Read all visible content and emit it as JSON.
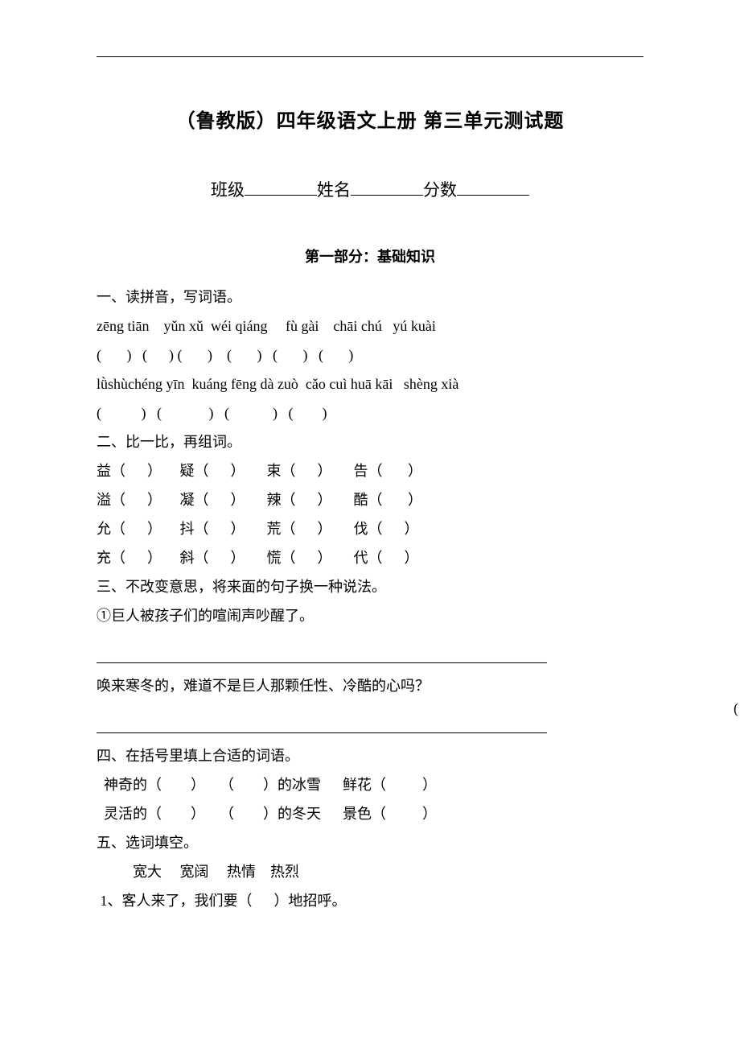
{
  "title": "（鲁教版）四年级语文上册 第三单元测试题",
  "fields": {
    "class_label": "班级",
    "name_label": "姓名",
    "score_label": "分数"
  },
  "part1_heading": "第一部分：基础知识",
  "q1": {
    "heading": "一、读拼音，写词语。",
    "pinyin_row1": "zēng tiān    yǔn xǔ  wéi qiáng     fù gài    chāi chú   yú kuài",
    "blanks_row1": "(       )   (      ) (       )    (       )   (       )   (       )",
    "pinyin_row2": "lǜshùchéng yīn  kuáng fēng dà zuò  cǎo cuì huā kāi   shèng xià",
    "blanks_row2": "(           )   (             )   (            )   (        )"
  },
  "q2": {
    "heading": "二、比一比，再组词。",
    "rows": [
      "益（      ）     疑（      ）      束（      ）      告（       ）",
      "溢（      ）     凝（      ）      辣（      ）      酷（       ）",
      "允（      ）     抖（      ）      荒（      ）      伐（      ）",
      "充（      ）     斜（      ）      慌（      ）      代（      ）"
    ]
  },
  "q3": {
    "heading": "三、不改变意思，将来面的句子换一种说法。",
    "item1": "①巨人被孩子们的喧闹声吵醒了。",
    "item2": "唤来寒冬的，难道不是巨人那颗任性、冷酷的心吗？"
  },
  "q4": {
    "heading": "四、在括号里填上合适的词语。",
    "rows": [
      "  神奇的（        ）    （        ）的冰雪      鲜花（          ）",
      "  灵活的（        ）    （        ）的冬天      景色（          ）"
    ]
  },
  "q5": {
    "heading": "五、选词填空。",
    "word_bank": "          宽大     宽阔     热情    热烈",
    "item1": " 1、客人来了，我们要（      ）地招呼。"
  },
  "edge_mark": "("
}
